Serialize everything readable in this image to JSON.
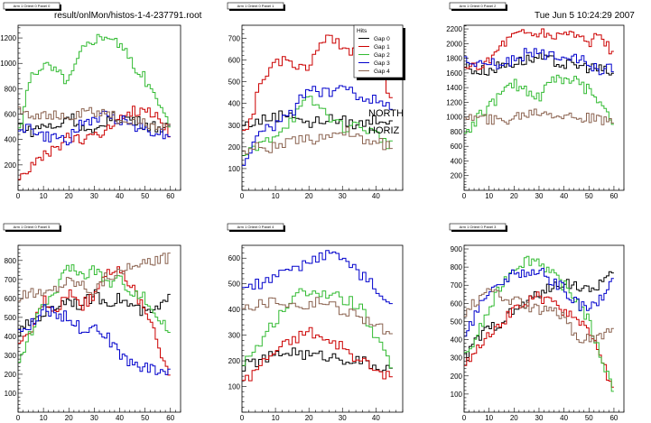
{
  "header": {
    "file_path": "result/onlMon/histos-1-4-237791.root",
    "timestamp": "Tue Jun  5 10:24:29 2007"
  },
  "annotation": {
    "line1": "NORTH",
    "line2": "HORIZ"
  },
  "legend": {
    "title": "Hits",
    "entries": [
      "Gap 0",
      "Gap 1",
      "Gap 2",
      "Gap 3",
      "Gap 4"
    ],
    "colors": [
      "#000000",
      "#cc0000",
      "#33bb33",
      "#0000cc",
      "#8b6350"
    ]
  },
  "chart_data": [
    {
      "type": "line",
      "title": "Arm 1 Orient 0 Panel 0",
      "xlim": [
        0,
        64
      ],
      "ylim": [
        0,
        1300
      ],
      "xticks": [
        0,
        10,
        20,
        30,
        40,
        50,
        60
      ],
      "yticks": [
        200,
        400,
        600,
        800,
        1000,
        1200
      ],
      "series": [
        {
          "name": "Gap 0",
          "x": [
            1,
            5,
            10,
            15,
            20,
            25,
            30,
            35,
            40,
            45,
            50,
            55,
            60
          ],
          "values": [
            520,
            460,
            520,
            480,
            600,
            500,
            430,
            560,
            580,
            560,
            520,
            500,
            480
          ]
        },
        {
          "name": "Gap 1",
          "x": [
            1,
            5,
            10,
            15,
            20,
            25,
            30,
            35,
            40,
            45,
            50,
            55,
            60
          ],
          "values": [
            120,
            180,
            260,
            330,
            420,
            380,
            460,
            460,
            600,
            620,
            640,
            580,
            450
          ]
        },
        {
          "name": "Gap 2",
          "x": [
            1,
            5,
            10,
            15,
            20,
            25,
            30,
            35,
            40,
            45,
            50,
            55,
            60
          ],
          "values": [
            480,
            900,
            1000,
            940,
            860,
            1100,
            1200,
            1230,
            1150,
            1000,
            880,
            700,
            500
          ]
        },
        {
          "name": "Gap 3",
          "x": [
            1,
            5,
            10,
            15,
            20,
            25,
            30,
            35,
            40,
            45,
            50,
            55,
            60
          ],
          "values": [
            500,
            490,
            420,
            410,
            400,
            520,
            560,
            590,
            560,
            520,
            480,
            460,
            420
          ]
        },
        {
          "name": "Gap 4",
          "x": [
            1,
            5,
            10,
            15,
            20,
            25,
            30,
            35,
            40,
            45,
            50,
            55,
            60
          ],
          "values": [
            640,
            600,
            600,
            580,
            560,
            600,
            620,
            600,
            560,
            540,
            520,
            520,
            500
          ]
        }
      ]
    },
    {
      "type": "line",
      "title": "Arm 1 Orient 0 Panel 1",
      "xlim": [
        0,
        48
      ],
      "ylim": [
        0,
        760
      ],
      "xticks": [
        0,
        10,
        20,
        30,
        40
      ],
      "yticks": [
        100,
        200,
        300,
        400,
        500,
        600,
        700
      ],
      "series": [
        {
          "name": "Gap 0",
          "x": [
            1,
            5,
            10,
            15,
            20,
            25,
            30,
            35,
            40,
            45
          ],
          "values": [
            300,
            320,
            340,
            360,
            300,
            330,
            320,
            300,
            330,
            320
          ]
        },
        {
          "name": "Gap 1",
          "x": [
            1,
            5,
            10,
            15,
            20,
            25,
            30,
            35,
            40,
            45
          ],
          "values": [
            250,
            450,
            600,
            590,
            560,
            700,
            660,
            620,
            560,
            430
          ]
        },
        {
          "name": "Gap 2",
          "x": [
            1,
            5,
            10,
            15,
            20,
            25,
            30,
            35,
            40,
            45
          ],
          "values": [
            160,
            200,
            260,
            330,
            420,
            360,
            290,
            300,
            260,
            200
          ]
        },
        {
          "name": "Gap 3",
          "x": [
            1,
            5,
            10,
            15,
            20,
            25,
            30,
            35,
            40,
            45
          ],
          "values": [
            140,
            260,
            300,
            360,
            480,
            440,
            480,
            420,
            430,
            360
          ]
        },
        {
          "name": "Gap 4",
          "x": [
            1,
            5,
            10,
            15,
            20,
            25,
            30,
            35,
            40,
            45
          ],
          "values": [
            180,
            200,
            200,
            220,
            230,
            250,
            280,
            230,
            220,
            200
          ]
        }
      ]
    },
    {
      "type": "line",
      "title": "Arm 1 Orient 0 Panel 2",
      "xlim": [
        0,
        64
      ],
      "ylim": [
        0,
        2250
      ],
      "xticks": [
        0,
        10,
        20,
        30,
        40,
        50,
        60
      ],
      "yticks": [
        200,
        400,
        600,
        800,
        1000,
        1200,
        1400,
        1600,
        1800,
        2000,
        2200
      ],
      "series": [
        {
          "name": "Gap 0",
          "x": [
            1,
            5,
            10,
            15,
            20,
            25,
            30,
            35,
            40,
            45,
            50,
            55,
            60
          ],
          "values": [
            1700,
            1620,
            1640,
            1700,
            1740,
            1780,
            1800,
            1760,
            1720,
            1700,
            1680,
            1640,
            1580
          ]
        },
        {
          "name": "Gap 1",
          "x": [
            1,
            5,
            10,
            15,
            20,
            25,
            30,
            35,
            40,
            45,
            50,
            55,
            60
          ],
          "values": [
            1620,
            1700,
            1760,
            2000,
            2120,
            2160,
            2140,
            2100,
            2160,
            2120,
            2020,
            2100,
            1820
          ]
        },
        {
          "name": "Gap 2",
          "x": [
            1,
            5,
            10,
            15,
            20,
            25,
            30,
            35,
            40,
            45,
            50,
            55,
            60
          ],
          "values": [
            800,
            960,
            1150,
            1320,
            1450,
            1380,
            1260,
            1550,
            1480,
            1480,
            1360,
            1200,
            950
          ]
        },
        {
          "name": "Gap 3",
          "x": [
            1,
            5,
            10,
            15,
            20,
            25,
            30,
            35,
            40,
            45,
            50,
            55,
            60
          ],
          "values": [
            1760,
            1700,
            1740,
            1680,
            1800,
            1860,
            1860,
            1840,
            1860,
            1820,
            1700,
            1620,
            1660
          ]
        },
        {
          "name": "Gap 4",
          "x": [
            1,
            5,
            10,
            15,
            20,
            25,
            30,
            35,
            40,
            45,
            50,
            55,
            60
          ],
          "values": [
            1000,
            980,
            960,
            940,
            1000,
            1050,
            1080,
            1060,
            1020,
            1000,
            980,
            940,
            920
          ]
        }
      ]
    },
    {
      "type": "line",
      "title": "Arm 1 Orient 0 Panel 5",
      "xlim": [
        0,
        64
      ],
      "ylim": [
        0,
        880
      ],
      "xticks": [
        0,
        10,
        20,
        30,
        40,
        50,
        60
      ],
      "yticks": [
        100,
        200,
        300,
        400,
        500,
        600,
        700,
        800
      ],
      "series": [
        {
          "name": "Gap 0",
          "x": [
            1,
            5,
            10,
            15,
            20,
            25,
            30,
            35,
            40,
            45,
            50,
            55,
            60
          ],
          "values": [
            420,
            480,
            520,
            560,
            600,
            560,
            620,
            580,
            600,
            560,
            520,
            540,
            600
          ]
        },
        {
          "name": "Gap 1",
          "x": [
            1,
            5,
            10,
            15,
            20,
            25,
            30,
            35,
            40,
            45,
            50,
            55,
            60
          ],
          "values": [
            350,
            420,
            600,
            540,
            640,
            560,
            620,
            760,
            740,
            660,
            540,
            360,
            200
          ]
        },
        {
          "name": "Gap 2",
          "x": [
            1,
            5,
            10,
            15,
            20,
            25,
            30,
            35,
            40,
            45,
            50,
            55,
            60
          ],
          "values": [
            280,
            420,
            560,
            640,
            780,
            720,
            760,
            680,
            700,
            640,
            600,
            500,
            420
          ]
        },
        {
          "name": "Gap 3",
          "x": [
            1,
            5,
            10,
            15,
            20,
            25,
            30,
            35,
            40,
            45,
            50,
            55,
            60
          ],
          "values": [
            420,
            460,
            540,
            520,
            500,
            440,
            460,
            400,
            300,
            260,
            240,
            220,
            220
          ]
        },
        {
          "name": "Gap 4",
          "x": [
            1,
            5,
            10,
            15,
            20,
            25,
            30,
            35,
            40,
            45,
            50,
            55,
            60
          ],
          "values": [
            600,
            640,
            620,
            660,
            700,
            680,
            640,
            720,
            740,
            760,
            780,
            800,
            820
          ]
        }
      ]
    },
    {
      "type": "line",
      "title": "Arm 1 Orient 0 Panel 4",
      "xlim": [
        0,
        48
      ],
      "ylim": [
        0,
        650
      ],
      "xticks": [
        0,
        10,
        20,
        30,
        40
      ],
      "yticks": [
        100,
        200,
        300,
        400,
        500,
        600
      ],
      "series": [
        {
          "name": "Gap 0",
          "x": [
            1,
            5,
            10,
            15,
            20,
            25,
            30,
            35,
            40,
            45
          ],
          "values": [
            180,
            200,
            220,
            240,
            220,
            220,
            210,
            200,
            180,
            160
          ]
        },
        {
          "name": "Gap 1",
          "x": [
            1,
            5,
            10,
            15,
            20,
            25,
            30,
            35,
            40,
            45
          ],
          "values": [
            120,
            180,
            240,
            280,
            320,
            280,
            250,
            200,
            160,
            140
          ]
        },
        {
          "name": "Gap 2",
          "x": [
            1,
            5,
            10,
            15,
            20,
            25,
            30,
            35,
            40,
            45
          ],
          "values": [
            200,
            260,
            360,
            440,
            480,
            460,
            440,
            420,
            280,
            180
          ]
        },
        {
          "name": "Gap 3",
          "x": [
            1,
            5,
            10,
            15,
            20,
            25,
            30,
            35,
            40,
            45
          ],
          "values": [
            480,
            500,
            520,
            560,
            580,
            620,
            600,
            540,
            480,
            400
          ]
        },
        {
          "name": "Gap 4",
          "x": [
            1,
            5,
            10,
            15,
            20,
            25,
            30,
            35,
            40,
            45
          ],
          "values": [
            420,
            420,
            440,
            420,
            420,
            430,
            400,
            380,
            340,
            300
          ]
        }
      ]
    },
    {
      "type": "line",
      "title": "Arm 1 Orient 0 Panel 3",
      "xlim": [
        0,
        64
      ],
      "ylim": [
        0,
        920
      ],
      "xticks": [
        0,
        10,
        20,
        30,
        40,
        50,
        60
      ],
      "yticks": [
        100,
        200,
        300,
        400,
        500,
        600,
        700,
        800,
        900
      ],
      "series": [
        {
          "name": "Gap 0",
          "x": [
            1,
            5,
            10,
            15,
            20,
            25,
            30,
            35,
            40,
            45,
            50,
            55,
            60
          ],
          "values": [
            300,
            400,
            460,
            500,
            560,
            600,
            660,
            680,
            720,
            700,
            660,
            720,
            760
          ]
        },
        {
          "name": "Gap 1",
          "x": [
            1,
            5,
            10,
            15,
            20,
            25,
            30,
            35,
            40,
            45,
            50,
            55,
            60
          ],
          "values": [
            260,
            360,
            440,
            500,
            560,
            600,
            640,
            600,
            560,
            520,
            460,
            300,
            90
          ]
        },
        {
          "name": "Gap 2",
          "x": [
            1,
            5,
            10,
            15,
            20,
            25,
            30,
            35,
            40,
            45,
            50,
            55,
            60
          ],
          "values": [
            300,
            420,
            560,
            700,
            800,
            840,
            840,
            760,
            700,
            620,
            500,
            300,
            120
          ]
        },
        {
          "name": "Gap 3",
          "x": [
            1,
            5,
            10,
            15,
            20,
            25,
            30,
            35,
            40,
            45,
            50,
            55,
            60
          ],
          "values": [
            420,
            560,
            680,
            720,
            760,
            780,
            780,
            720,
            680,
            600,
            560,
            620,
            760
          ]
        },
        {
          "name": "Gap 4",
          "x": [
            1,
            5,
            10,
            15,
            20,
            25,
            30,
            35,
            40,
            45,
            50,
            55,
            60
          ],
          "values": [
            560,
            620,
            660,
            640,
            620,
            580,
            560,
            560,
            520,
            420,
            400,
            420,
            460
          ]
        }
      ]
    }
  ]
}
